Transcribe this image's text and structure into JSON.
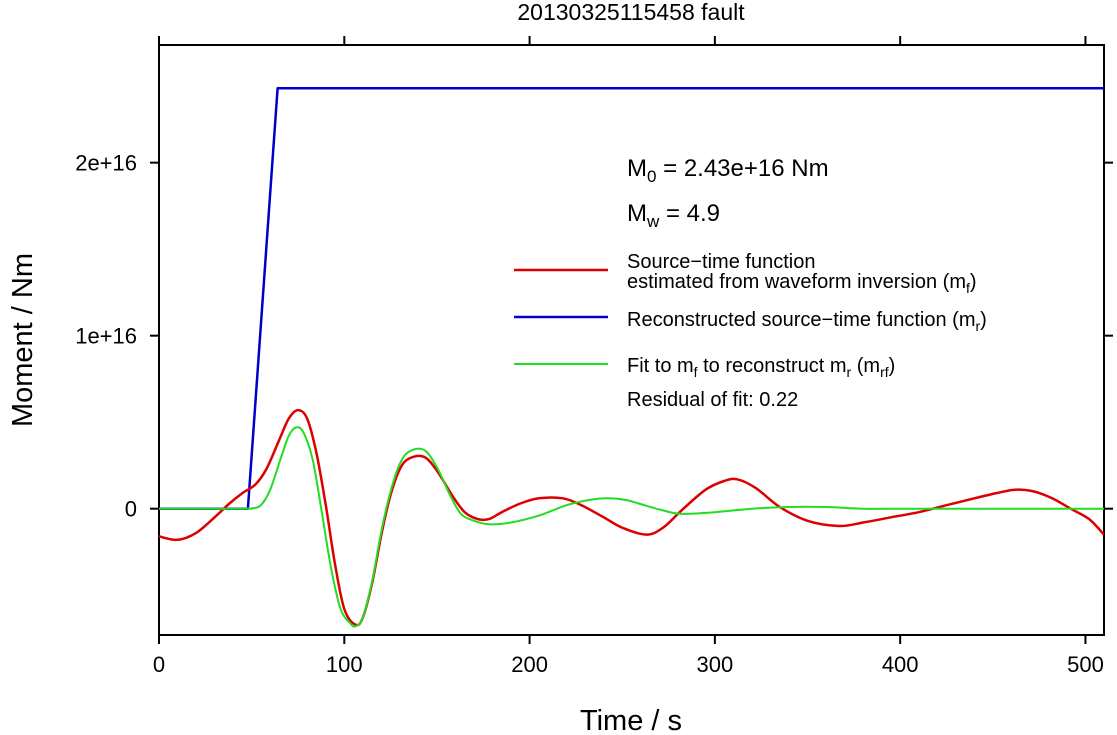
{
  "chart_data": {
    "type": "line",
    "title": "20130325115458 fault",
    "xlabel": "Time / s",
    "ylabel": "Moment / Nm",
    "xlim": [
      0,
      510
    ],
    "ylim": [
      -7300000000000000.0,
      2.68e+16
    ],
    "xticks": [
      0,
      100,
      200,
      300,
      400,
      500
    ],
    "xtick_labels": [
      "0",
      "100",
      "200",
      "300",
      "400",
      "500"
    ],
    "yticks": [
      0,
      1e+16,
      2e+16
    ],
    "ytick_labels": [
      "0",
      "1e+16",
      "2e+16"
    ],
    "grid": false,
    "legend_position": "center-right",
    "annotations": {
      "m0_prefix": "M",
      "m0_sub": "0",
      "m0_rest": " = 2.43e+16 Nm",
      "mw_prefix": "M",
      "mw_sub": "w",
      "mw_rest": " = 4.9",
      "residual": "Residual of fit: 0.22"
    },
    "legend": {
      "red_line1": "Source−time function",
      "red_line2_a": "estimated from waveform inversion (m",
      "red_line2_sub": "f",
      "red_line2_b": ")",
      "blue_a": "Reconstructed source−time function (m",
      "blue_sub": "r",
      "blue_b": ")",
      "green_a": "Fit to m",
      "green_sub1": "f",
      "green_b": " to reconstruct m",
      "green_sub2": "r",
      "green_c": " (m",
      "green_sub3": "rf",
      "green_d": ")"
    },
    "colors": {
      "red": "#dd0000",
      "blue": "#0000cc",
      "green": "#22dd22"
    },
    "series": [
      {
        "key": "red",
        "x": [
          0,
          10,
          20,
          30,
          38,
          45,
          52,
          58,
          65,
          70,
          75,
          80,
          85,
          90,
          95,
          100,
          106,
          110,
          115,
          120,
          125,
          130,
          135,
          143,
          150,
          158,
          165,
          172,
          178,
          185,
          195,
          205,
          218,
          228,
          240,
          250,
          263,
          272,
          282,
          295,
          305,
          312,
          322,
          335,
          350,
          367,
          380,
          395,
          410,
          425,
          440,
          452,
          462,
          472,
          482,
          492,
          502,
          510
        ],
        "y": [
          -1600000000000000.0,
          -1800000000000000.0,
          -1400000000000000.0,
          -500000000000000.0,
          300000000000000.0,
          900000000000000.0,
          1400000000000000.0,
          2300000000000000.0,
          4000000000000000.0,
          5200000000000000.0,
          5700000000000000.0,
          5200000000000000.0,
          3200000000000000.0,
          200000000000000.0,
          -3200000000000000.0,
          -5800000000000000.0,
          -6700000000000000.0,
          -6300000000000000.0,
          -4300000000000000.0,
          -1500000000000000.0,
          800000000000000.0,
          2300000000000000.0,
          2900000000000000.0,
          3000000000000000.0,
          2200000000000000.0,
          800000000000000.0,
          -200000000000000.0,
          -600000000000000.0,
          -600000000000000.0,
          -200000000000000.0,
          300000000000000.0,
          600000000000000.0,
          600000000000000.0,
          200000000000000.0,
          -500000000000000.0,
          -1100000000000000.0,
          -1500000000000000.0,
          -1100000000000000.0,
          -100000000000000.0,
          1100000000000000.0,
          1600000000000000.0,
          1700000000000000.0,
          1200000000000000.0,
          100000000000000.0,
          -700000000000000.0,
          -1000000000000000.0,
          -800000000000000.0,
          -500000000000000.0,
          -200000000000000.0,
          200000000000000.0,
          600000000000000.0,
          900000000000000.0,
          1100000000000000.0,
          1000000000000000.0,
          600000000000000.0,
          0,
          -600000000000000.0,
          -1500000000000000.0
        ]
      },
      {
        "key": "blue",
        "x": [
          0,
          48,
          64,
          510
        ],
        "y": [
          0,
          0,
          2.43e+16,
          2.43e+16
        ]
      },
      {
        "key": "green",
        "x": [
          0,
          45,
          50,
          55,
          60,
          66,
          70,
          74,
          78,
          83,
          88,
          93,
          98,
          103,
          106,
          110,
          115,
          120,
          125,
          130,
          135,
          143,
          150,
          157,
          163,
          170,
          178,
          190,
          205,
          220,
          232,
          242,
          252,
          262,
          272,
          282,
          300,
          320,
          340,
          360,
          380,
          400,
          420,
          450,
          480,
          510
        ],
        "y": [
          0,
          0,
          20000000000000.0,
          200000000000000.0,
          1100000000000000.0,
          3000000000000000.0,
          4200000000000000.0,
          4700000000000000.0,
          4400000000000000.0,
          2800000000000000.0,
          -300000000000000.0,
          -3500000000000000.0,
          -5800000000000000.0,
          -6600000000000000.0,
          -6800000000000000.0,
          -6300000000000000.0,
          -4200000000000000.0,
          -1300000000000000.0,
          1000000000000000.0,
          2600000000000000.0,
          3300000000000000.0,
          3400000000000000.0,
          2400000000000000.0,
          800000000000000.0,
          -300000000000000.0,
          -700000000000000.0,
          -900000000000000.0,
          -800000000000000.0,
          -400000000000000.0,
          200000000000000.0,
          500000000000000.0,
          600000000000000.0,
          500000000000000.0,
          200000000000000.0,
          -100000000000000.0,
          -300000000000000.0,
          -200000000000000.0,
          0,
          100000000000000.0,
          100000000000000.0,
          0,
          0,
          0,
          0,
          0,
          0
        ]
      }
    ]
  }
}
